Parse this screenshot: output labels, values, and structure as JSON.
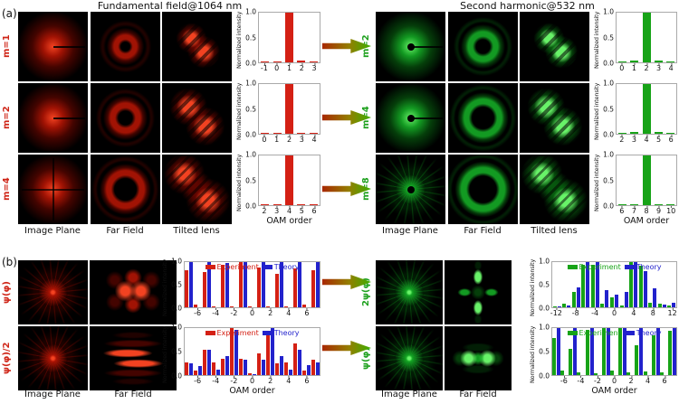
{
  "colors": {
    "red_bar": "#d42014",
    "green_bar": "#17a317",
    "blue_bar": "#2222cc",
    "red_label": "#cf2517",
    "green_label": "#1fa11f",
    "frame": "#a9a9a9"
  },
  "panel_a": {
    "label": "(a)",
    "left": {
      "title": "Fundamental field@1064 nm",
      "row_labels": [
        "m=1",
        "m=2",
        "m=4"
      ],
      "col_labels": [
        "Image Plane",
        "Far Field",
        "Tilted lens"
      ],
      "beams": [
        [
          "disk slit",
          "ring-sm",
          "lobes-a"
        ],
        [
          "disk slit",
          "ring-md",
          "lobes-b"
        ],
        [
          "disk xcross",
          "ring-lg",
          "lobes-c"
        ]
      ]
    },
    "right": {
      "title": "Second harmonic@532 nm",
      "row_labels": [
        "m=2",
        "m=4",
        "m=8"
      ],
      "col_labels": [
        "Image Plane",
        "Far Field",
        "Tilted lens"
      ],
      "beams": [
        [
          "disk dot slit",
          "ring-md",
          "lobes-a"
        ],
        [
          "disk dot slit",
          "ring-lg",
          "lobes-b"
        ],
        [
          "star dot",
          "ring-xl",
          "lobes-c"
        ]
      ]
    }
  },
  "panel_b": {
    "label": "(b)",
    "left": {
      "row_labels": [
        "ψ(φ)",
        "ψ(φ)/2"
      ],
      "col_labels": [
        "Image Plane",
        "Far Field"
      ],
      "beams": [
        [
          "star",
          "spots"
        ],
        [
          "star",
          "bands"
        ]
      ]
    },
    "right": {
      "row_labels": [
        "2ψ(φ)",
        "ψ(φ)"
      ],
      "col_labels": [
        "Image Plane",
        "Far Field"
      ],
      "beams": [
        [
          "star",
          "ffcross"
        ],
        [
          "star",
          "hspots"
        ]
      ]
    }
  },
  "chart_data": [
    {
      "type": "bar",
      "panel": "a-left",
      "row": "m=1",
      "ylabel": "Normalized intensity",
      "yticks": [
        "1.0",
        "0.5",
        "0.0"
      ],
      "ylim": [
        0,
        1
      ],
      "categories": [
        -1,
        0,
        1,
        2,
        3
      ],
      "series": [
        {
          "name": "Intensity",
          "color": "#d42014",
          "values": [
            0.01,
            0.02,
            1.0,
            0.03,
            0.01
          ]
        }
      ]
    },
    {
      "type": "bar",
      "panel": "a-left",
      "row": "m=2",
      "ylabel": "Normalized intensity",
      "yticks": [
        "1.0",
        "0.5",
        "0.0"
      ],
      "ylim": [
        0,
        1
      ],
      "categories": [
        0,
        1,
        2,
        3,
        4
      ],
      "series": [
        {
          "name": "Intensity",
          "color": "#d42014",
          "values": [
            0.01,
            0.02,
            1.0,
            0.02,
            0.01
          ]
        }
      ]
    },
    {
      "type": "bar",
      "panel": "a-left",
      "row": "m=4",
      "ylabel": "Normalized intensity",
      "yticks": [
        "1.0",
        "0.5",
        "0.0"
      ],
      "ylim": [
        0,
        1
      ],
      "categories": [
        2,
        3,
        4,
        5,
        6
      ],
      "xlabel": "OAM order",
      "series": [
        {
          "name": "Intensity",
          "color": "#d42014",
          "values": [
            0.01,
            0.02,
            1.0,
            0.02,
            0.01
          ]
        }
      ]
    },
    {
      "type": "bar",
      "panel": "a-right",
      "row": "m=2",
      "ylabel": "Normalized intensity",
      "yticks": [
        "1.0",
        "0.5",
        "0.0"
      ],
      "ylim": [
        0,
        1
      ],
      "categories": [
        0,
        1,
        2,
        3,
        4
      ],
      "series": [
        {
          "name": "Intensity",
          "color": "#17a317",
          "values": [
            0.01,
            0.03,
            1.0,
            0.03,
            0.01
          ]
        }
      ]
    },
    {
      "type": "bar",
      "panel": "a-right",
      "row": "m=4",
      "ylabel": "Normalized intensity",
      "yticks": [
        "1.0",
        "0.5",
        "0.0"
      ],
      "ylim": [
        0,
        1
      ],
      "categories": [
        2,
        3,
        4,
        5,
        6
      ],
      "series": [
        {
          "name": "Intensity",
          "color": "#17a317",
          "values": [
            0.01,
            0.03,
            1.0,
            0.04,
            0.01
          ]
        }
      ]
    },
    {
      "type": "bar",
      "panel": "a-right",
      "row": "m=8",
      "ylabel": "Normalized intensity",
      "yticks": [
        "1.0",
        "0.5",
        "0.0"
      ],
      "ylim": [
        0,
        1
      ],
      "categories": [
        6,
        7,
        8,
        9,
        10
      ],
      "xlabel": "OAM order",
      "series": [
        {
          "name": "Intensity",
          "color": "#17a317",
          "values": [
            0.01,
            0.01,
            1.0,
            0.01,
            0.01
          ]
        }
      ]
    },
    {
      "type": "bar",
      "panel": "b-left",
      "row": "ψ(φ)",
      "ylabel": "Normalized intensity",
      "yticks": [
        "1.0",
        "0.5",
        "0.0"
      ],
      "ylim": [
        0,
        1
      ],
      "categories": [
        -7,
        -6,
        -5,
        -4,
        -3,
        -2,
        -1,
        0,
        1,
        2,
        3,
        4,
        5,
        6,
        7
      ],
      "xtick_labels": [
        null,
        "-6",
        null,
        "-4",
        null,
        "-2",
        null,
        "0",
        null,
        "2",
        null,
        "4",
        null,
        "6",
        null
      ],
      "legend": true,
      "series": [
        {
          "name": "Experiment",
          "color": "#d42014",
          "values": [
            0.83,
            0.06,
            0.79,
            0.02,
            0.94,
            0.02,
            1.0,
            0.03,
            0.88,
            0.02,
            0.75,
            0.03,
            0.86,
            0.06,
            0.82
          ]
        },
        {
          "name": "Theory",
          "color": "#2222cc",
          "values": [
            1.0,
            0.0,
            1.0,
            0.0,
            0.98,
            0.0,
            1.0,
            0.0,
            1.0,
            0.0,
            1.0,
            0.0,
            1.0,
            0.0,
            1.0
          ]
        }
      ]
    },
    {
      "type": "bar",
      "panel": "b-left",
      "row": "ψ(φ)/2",
      "ylabel": "Normalized intensity",
      "yticks": [
        "1.0",
        "0.5",
        "0.0"
      ],
      "ylim": [
        0,
        1
      ],
      "categories": [
        -7,
        -6,
        -5,
        -4,
        -3,
        -2,
        -1,
        0,
        1,
        2,
        3,
        4,
        5,
        6,
        7
      ],
      "xtick_labels": [
        null,
        "-6",
        null,
        "-4",
        null,
        "-2",
        null,
        "0",
        null,
        "2",
        null,
        "4",
        null,
        "6",
        null
      ],
      "xlabel": "OAM order",
      "legend": true,
      "series": [
        {
          "name": "Experiment",
          "color": "#d42014",
          "values": [
            0.26,
            0.1,
            0.53,
            0.26,
            0.34,
            1.0,
            0.35,
            0.03,
            0.47,
            0.85,
            0.25,
            0.27,
            0.67,
            0.1,
            0.32
          ]
        },
        {
          "name": "Theory",
          "color": "#2222cc",
          "values": [
            0.25,
            0.2,
            0.53,
            0.12,
            0.4,
            0.97,
            0.33,
            0.02,
            0.33,
            1.0,
            0.4,
            0.12,
            0.53,
            0.22,
            0.27
          ]
        }
      ]
    },
    {
      "type": "bar",
      "panel": "b-right",
      "row": "2ψ(φ)",
      "ylabel": "Normalized intensity",
      "yticks": [
        "1.0",
        "0.5",
        "0.0"
      ],
      "ylim": [
        0,
        1
      ],
      "categories": [
        -12,
        -10,
        -8,
        -6,
        -4,
        -2,
        0,
        2,
        4,
        6,
        8,
        10,
        12
      ],
      "xtick_labels": [
        "-12",
        null,
        "-8",
        null,
        "-4",
        null,
        "0",
        null,
        "4",
        null,
        "8",
        null,
        "12"
      ],
      "legend": true,
      "series": [
        {
          "name": "Experiment",
          "color": "#17a317",
          "values": [
            0.03,
            0.08,
            0.35,
            0.95,
            0.95,
            0.08,
            0.22,
            0.05,
            1.0,
            0.93,
            0.1,
            0.08,
            0.05
          ]
        },
        {
          "name": "Theory",
          "color": "#2222cc",
          "values": [
            0.02,
            0.05,
            0.45,
            1.0,
            1.0,
            0.38,
            0.28,
            0.35,
            1.0,
            0.8,
            0.42,
            0.06,
            0.1
          ]
        }
      ]
    },
    {
      "type": "bar",
      "panel": "b-right",
      "row": "ψ(φ)",
      "ylabel": "Normalized intensity",
      "yticks": [
        "1.0",
        "0.5",
        "0.0"
      ],
      "ylim": [
        0,
        1
      ],
      "categories": [
        -7,
        -6,
        -5,
        -4,
        -3,
        -2,
        -1,
        0,
        1,
        2,
        3,
        4,
        5,
        6,
        7
      ],
      "xtick_labels": [
        null,
        "-6",
        null,
        "-4",
        null,
        "-2",
        null,
        "0",
        null,
        "2",
        null,
        "4",
        null,
        "6",
        null
      ],
      "xlabel": "OAM order",
      "legend": true,
      "series": [
        {
          "name": "Experiment",
          "color": "#17a317",
          "values": [
            0.78,
            0.1,
            0.55,
            0.05,
            0.97,
            0.04,
            1.0,
            0.1,
            1.0,
            0.05,
            0.63,
            0.08,
            0.85,
            0.05,
            0.95
          ]
        },
        {
          "name": "Theory",
          "color": "#2222cc",
          "values": [
            1.0,
            0.0,
            1.0,
            0.0,
            1.0,
            0.0,
            1.0,
            0.0,
            1.0,
            0.0,
            1.0,
            0.0,
            1.0,
            0.0,
            1.0
          ]
        }
      ]
    }
  ]
}
